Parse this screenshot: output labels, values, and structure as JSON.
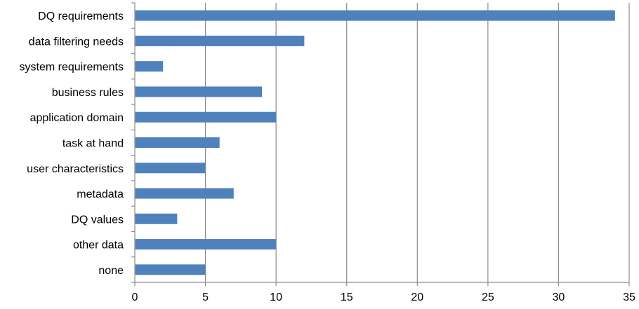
{
  "chart_data": {
    "type": "bar",
    "orientation": "horizontal",
    "categories": [
      "DQ requirements",
      "data filtering needs",
      "system requirements",
      "business rules",
      "application domain",
      "task at hand",
      "user characteristics",
      "metadata",
      "DQ values",
      "other data",
      "none"
    ],
    "values": [
      34,
      12,
      2,
      9,
      10,
      6,
      5,
      7,
      3,
      10,
      5
    ],
    "xlim": [
      0,
      35
    ],
    "xticks": [
      0,
      5,
      10,
      15,
      20,
      25,
      30,
      35
    ],
    "grid": true,
    "legend": "none",
    "bar_color": "#4f81bd"
  }
}
